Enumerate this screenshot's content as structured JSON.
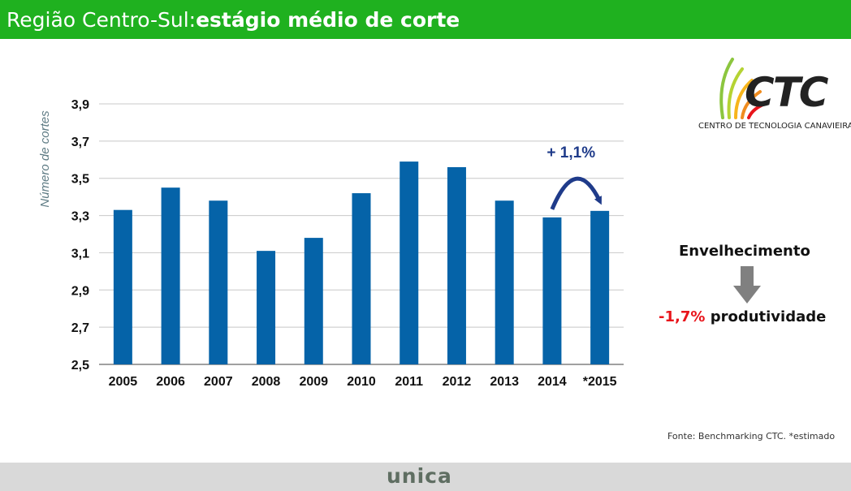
{
  "header": {
    "title_regular": "Região Centro-Sul: ",
    "title_bold": "estágio médio de corte"
  },
  "chart_data": {
    "type": "bar",
    "categories": [
      "2005",
      "2006",
      "2007",
      "2008",
      "2009",
      "2010",
      "2011",
      "2012",
      "2013",
      "2014",
      "*2015"
    ],
    "values": [
      3.33,
      3.45,
      3.38,
      3.11,
      3.18,
      3.42,
      3.59,
      3.56,
      3.38,
      3.29,
      3.325
    ],
    "title": "",
    "xlabel": "",
    "ylabel": "Número de cortes",
    "ylim": [
      2.5,
      3.9
    ],
    "yticks": [
      "2,5",
      "2,7",
      "2,9",
      "3,1",
      "3,3",
      "3,5",
      "3,7",
      "3,9"
    ],
    "grid": true,
    "bar_color": "#0563a8",
    "annotation": {
      "text": "+ 1,1%",
      "from": "2014",
      "to": "*2015",
      "color": "#1f3b8a"
    }
  },
  "logo": {
    "name": "CTC",
    "subtitle": "CENTRO DE TECNOLOGIA CANAVIEIRA"
  },
  "side_note": {
    "label": "Envelhecimento",
    "value": "-1,7%",
    "value_label": "produtividade",
    "value_color": "#e8141b",
    "arrow_icon": "arrow-down-icon"
  },
  "source": "Fonte: Benchmarking CTC. *estimado",
  "footer": {
    "logo_text": "unica"
  }
}
